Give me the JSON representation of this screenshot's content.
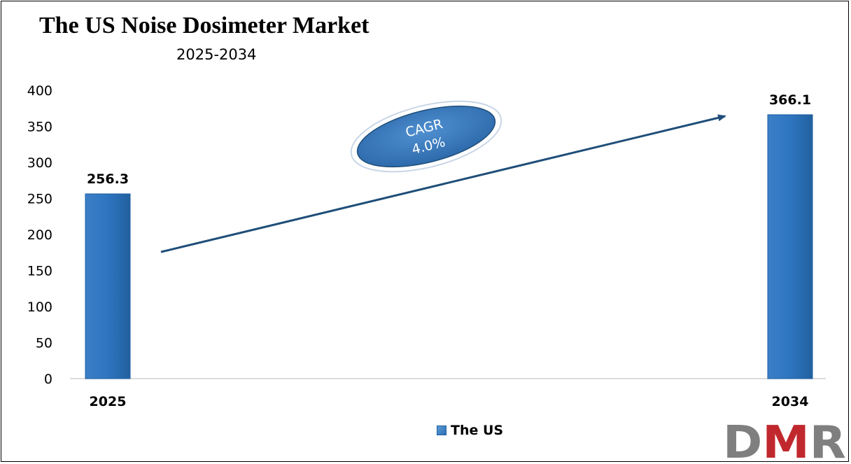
{
  "chart_data": {
    "type": "bar",
    "title": "The US Noise Dosimeter Market",
    "subtitle": "2025-2034",
    "categories": [
      "2025",
      "2034"
    ],
    "series": [
      {
        "name": "The US",
        "values": [
          256.3,
          366.1
        ],
        "labels": [
          "256.3",
          "366.1"
        ],
        "color": "#2e75c0"
      }
    ],
    "ylim": [
      0,
      400
    ],
    "yticks": [
      0,
      50,
      100,
      150,
      200,
      250,
      300,
      350,
      400
    ],
    "xlabel": "",
    "ylabel": "",
    "grid": false,
    "legend": "bottom-center",
    "annotation": {
      "line1": "CAGR",
      "line2": "4.0%"
    }
  },
  "logo": {
    "text": "DMR",
    "colors": {
      "d": "#7f7f7f",
      "m": "#c0282d",
      "r": "#7f7f7f"
    }
  }
}
